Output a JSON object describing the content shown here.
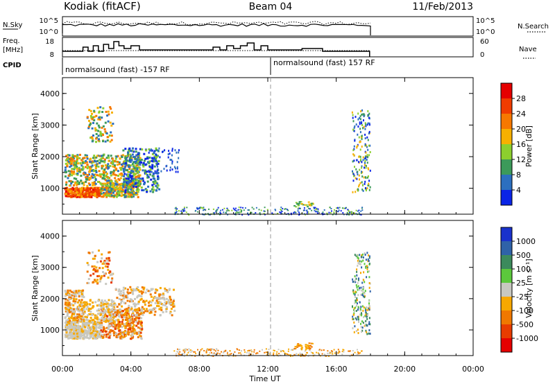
{
  "header": {
    "station": "Kodiak (fitACF)",
    "beam": "Beam 04",
    "date": "11/Feb/2013"
  },
  "top_panels": {
    "nsky_label": "N.Sky",
    "nsky_ticks": [
      "10^5",
      "10^0"
    ],
    "nsearch_label": "N.Search",
    "freq_label_1": "Freq.",
    "freq_label_2": "[MHz]",
    "freq_ticks": [
      "18",
      "8"
    ],
    "nave_ticks": [
      "60",
      "0"
    ],
    "nave_label": "Nave",
    "cpid_label": "CPID",
    "cpid_segments": [
      "normalsound (fast) -157 RF",
      "normalsound (fast) 157 RF"
    ]
  },
  "axes": {
    "ylabel": "Slant Range [km]",
    "yticks": [
      "4000",
      "3000",
      "2000",
      "1000"
    ],
    "xticks": [
      "00:00",
      "04:00",
      "08:00",
      "12:00",
      "16:00",
      "20:00",
      "00:00"
    ],
    "xlabel": "Time UT"
  },
  "colorbars": {
    "power_label": "Power [dB]",
    "power_ticks": [
      "28",
      "24",
      "20",
      "16",
      "12",
      "8",
      "4"
    ],
    "power_colors": [
      "#e50000",
      "#f03c00",
      "#f77800",
      "#f7b000",
      "#8ccf2e",
      "#3c9a5a",
      "#2c6fbf",
      "#0a24e6"
    ],
    "velocity_label": "Velocity [m s⁻¹]",
    "velocity_ticks": [
      "1000",
      "500",
      "100",
      "25",
      "-25",
      "-100",
      "-500",
      "-1000"
    ],
    "velocity_colors": [
      "#1a32cc",
      "#2f62a8",
      "#3c8a5c",
      "#5cc83c",
      "#c8c8c0",
      "#f7a800",
      "#f07800",
      "#e83c00",
      "#e50000"
    ]
  },
  "chart_data": [
    {
      "type": "heatmap",
      "title": "Power",
      "x_range_hours": [
        0,
        24
      ],
      "ylim": [
        180,
        4500
      ],
      "regions": [
        {
          "t": [
            0.1,
            2.2
          ],
          "r": [
            700,
            1100
          ],
          "value": "high (24-30 dB)"
        },
        {
          "t": [
            2.2,
            4.4
          ],
          "r": [
            700,
            1200
          ],
          "value": "12-24 dB"
        },
        {
          "t": [
            0.1,
            5.6
          ],
          "r": [
            1100,
            2400
          ],
          "value": "8-16 dB"
        },
        {
          "t": [
            1.4,
            2.9
          ],
          "r": [
            2500,
            3600
          ],
          "value": "8-20 dB"
        },
        {
          "t": [
            16.9,
            17.95
          ],
          "r": [
            900,
            3500
          ],
          "value": "4-16 dB"
        },
        {
          "t": [
            6.5,
            17.5
          ],
          "r": [
            180,
            420
          ],
          "value": "4-16 dB"
        }
      ]
    },
    {
      "type": "heatmap",
      "title": "Velocity",
      "x_range_hours": [
        0,
        24
      ],
      "ylim": [
        180,
        4500
      ],
      "regions": [
        {
          "t": [
            0.1,
            2.2
          ],
          "r": [
            700,
            1300
          ],
          "value": "-25 to 25 m/s"
        },
        {
          "t": [
            2.2,
            4.6
          ],
          "r": [
            750,
            1700
          ],
          "value": "-100 to -500 m/s"
        },
        {
          "t": [
            0.1,
            1.2
          ],
          "r": [
            1300,
            2300
          ],
          "value": "-25 to -100 m/s"
        },
        {
          "t": [
            3.0,
            6.5
          ],
          "r": [
            1500,
            2400
          ],
          "value": "-25 to 25 m/s"
        },
        {
          "t": [
            1.4,
            2.9
          ],
          "r": [
            2500,
            3600
          ],
          "value": "-100 to 25 m/s"
        },
        {
          "t": [
            16.9,
            17.95
          ],
          "r": [
            900,
            3500
          ],
          "value": "25 to 500 m/s"
        },
        {
          "t": [
            6.5,
            17.5
          ],
          "r": [
            180,
            420
          ],
          "value": "-25 to -100 m/s"
        }
      ]
    }
  ]
}
